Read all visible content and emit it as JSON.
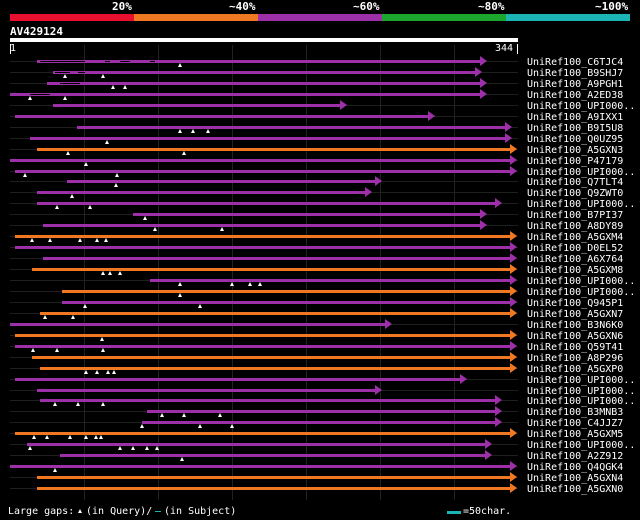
{
  "legend": {
    "ticks": [
      "20%",
      "~40%",
      "~60%",
      "~80%",
      "~100%"
    ],
    "colors": [
      "#e8102e",
      "#f07822",
      "#9d2fa8",
      "#1ca62e",
      "#1bb5b5"
    ]
  },
  "query": {
    "name": "AV429124",
    "start": "1",
    "end": "344"
  },
  "colors": {
    "purple": "#9d2fa8",
    "orange": "#f07822",
    "white": "#ffffff"
  },
  "hits": [
    {
      "label": "UniRef100_C6TJC4",
      "color": "purple",
      "start": 27,
      "end": 470,
      "gaps": [
        [
          30,
          75
        ],
        [
          95,
          100
        ],
        [
          110,
          120
        ],
        [
          140,
          145
        ]
      ],
      "tris": [
        170
      ]
    },
    {
      "label": "UniRef100_B9SHJ7",
      "color": "purple",
      "start": 43,
      "end": 465,
      "gaps": [
        [
          45,
          60
        ],
        [
          68,
          75
        ]
      ],
      "tris": [
        55,
        93
      ]
    },
    {
      "label": "UniRef100_A9PGH1",
      "color": "purple",
      "start": 37,
      "end": 470,
      "gaps": [
        [
          50,
          70
        ]
      ],
      "tris": [
        103,
        115
      ]
    },
    {
      "label": "UniRef100_A2ED38",
      "color": "purple",
      "start": 0,
      "end": 470,
      "gaps": [
        [
          20,
          40
        ]
      ],
      "tris": [
        20,
        55
      ]
    },
    {
      "label": "UniRef100_UPI000..",
      "color": "purple",
      "start": 43,
      "end": 330,
      "gaps": [],
      "tris": []
    },
    {
      "label": "UniRef100_A9IXX1",
      "color": "purple",
      "start": 5,
      "end": 418,
      "gaps": [],
      "tris": []
    },
    {
      "label": "UniRef100_B9I5U8",
      "color": "purple",
      "start": 67,
      "end": 495,
      "gaps": [],
      "tris": [
        170,
        183,
        198
      ]
    },
    {
      "label": "UniRef100_Q0UZ95",
      "color": "purple",
      "start": 20,
      "end": 495,
      "gaps": [],
      "tris": [
        97
      ]
    },
    {
      "label": "UniRef100_A5GXN3",
      "color": "orange",
      "start": 27,
      "end": 500,
      "gaps": [],
      "tris": [
        58,
        174
      ]
    },
    {
      "label": "UniRef100_P47179",
      "color": "purple",
      "start": 0,
      "end": 500,
      "gaps": [],
      "tris": [
        76
      ]
    },
    {
      "label": "UniRef100_UPI000..",
      "color": "purple",
      "start": 5,
      "end": 500,
      "gaps": [],
      "tris": [
        15,
        107
      ]
    },
    {
      "label": "UniRef100_Q7TLT4",
      "color": "purple",
      "start": 57,
      "end": 365,
      "gaps": [],
      "tris": [
        106
      ]
    },
    {
      "label": "UniRef100_Q9ZWT0",
      "color": "purple",
      "start": 27,
      "end": 355,
      "gaps": [],
      "tris": [
        62
      ]
    },
    {
      "label": "UniRef100_UPI000..",
      "color": "purple",
      "start": 27,
      "end": 485,
      "gaps": [],
      "tris": [
        47,
        80
      ]
    },
    {
      "label": "UniRef100_B7PI37",
      "color": "purple",
      "start": 123,
      "end": 470,
      "gaps": [],
      "tris": [
        135
      ]
    },
    {
      "label": "UniRef100_A8DY89",
      "color": "purple",
      "start": 33,
      "end": 470,
      "gaps": [],
      "tris": [
        145,
        212
      ]
    },
    {
      "label": "UniRef100_A5GXM4",
      "color": "orange",
      "start": 5,
      "end": 500,
      "gaps": [],
      "tris": [
        22,
        40,
        70,
        87,
        96
      ]
    },
    {
      "label": "UniRef100_D0EL52",
      "color": "purple",
      "start": 5,
      "end": 500,
      "gaps": [],
      "tris": []
    },
    {
      "label": "UniRef100_A6X764",
      "color": "purple",
      "start": 33,
      "end": 500,
      "gaps": [],
      "tris": []
    },
    {
      "label": "UniRef100_A5GXM8",
      "color": "orange",
      "start": 22,
      "end": 500,
      "gaps": [],
      "tris": [
        93,
        100,
        110
      ]
    },
    {
      "label": "UniRef100_UPI000..",
      "color": "purple",
      "start": 140,
      "end": 500,
      "gaps": [],
      "tris": [
        170,
        222,
        240,
        250
      ]
    },
    {
      "label": "UniRef100_UPI000..",
      "color": "orange",
      "start": 52,
      "end": 500,
      "gaps": [],
      "tris": [
        170
      ]
    },
    {
      "label": "UniRef100_Q945P1",
      "color": "purple",
      "start": 52,
      "end": 500,
      "gaps": [],
      "tris": [
        75,
        190
      ]
    },
    {
      "label": "UniRef100_A5GXN7",
      "color": "orange",
      "start": 30,
      "end": 500,
      "gaps": [],
      "tris": [
        35,
        63
      ]
    },
    {
      "label": "UniRef100_B3N6K0",
      "color": "purple",
      "start": 0,
      "end": 375,
      "gaps": [],
      "tris": []
    },
    {
      "label": "UniRef100_A5GXN6",
      "color": "orange",
      "start": 5,
      "end": 500,
      "gaps": [],
      "tris": [
        92
      ]
    },
    {
      "label": "UniRef100_Q59T41",
      "color": "purple",
      "start": 5,
      "end": 500,
      "gaps": [],
      "tris": [
        23,
        47,
        93
      ]
    },
    {
      "label": "UniRef100_A8P296",
      "color": "orange",
      "start": 22,
      "end": 500,
      "gaps": [],
      "tris": []
    },
    {
      "label": "UniRef100_A5GXP0",
      "color": "orange",
      "start": 30,
      "end": 500,
      "gaps": [],
      "tris": [
        76,
        87,
        98,
        104
      ]
    },
    {
      "label": "UniRef100_UPI000..",
      "color": "purple",
      "start": 5,
      "end": 450,
      "gaps": [],
      "tris": []
    },
    {
      "label": "UniRef100_UPI000..",
      "color": "purple",
      "start": 27,
      "end": 365,
      "gaps": [],
      "tris": []
    },
    {
      "label": "UniRef100_UPI000..",
      "color": "purple",
      "start": 30,
      "end": 485,
      "gaps": [],
      "tris": [
        45,
        68,
        93
      ]
    },
    {
      "label": "UniRef100_B3MNB3",
      "color": "purple",
      "start": 137,
      "end": 485,
      "gaps": [],
      "tris": [
        152,
        174,
        210
      ]
    },
    {
      "label": "UniRef100_C4JJZ7",
      "color": "purple",
      "start": 132,
      "end": 485,
      "gaps": [],
      "tris": [
        132,
        190,
        222
      ]
    },
    {
      "label": "UniRef100_A5GXM5",
      "color": "orange",
      "start": 5,
      "end": 500,
      "gaps": [],
      "tris": [
        24,
        37,
        60,
        76,
        86,
        91
      ]
    },
    {
      "label": "UniRef100_UPI000..",
      "color": "purple",
      "start": 17,
      "end": 475,
      "gaps": [],
      "tris": [
        20,
        110,
        123,
        137,
        147
      ]
    },
    {
      "label": "UniRef100_A2Z912",
      "color": "purple",
      "start": 50,
      "end": 475,
      "gaps": [],
      "tris": [
        172
      ]
    },
    {
      "label": "UniRef100_Q4QGK4",
      "color": "purple",
      "start": 0,
      "end": 500,
      "gaps": [],
      "tris": [
        45
      ]
    },
    {
      "label": "UniRef100_A5GXN4",
      "color": "orange",
      "start": 27,
      "end": 500,
      "gaps": [],
      "tris": []
    },
    {
      "label": "UniRef100_A5GXN0",
      "color": "orange",
      "start": 27,
      "end": 500,
      "gaps": [],
      "tris": []
    }
  ],
  "footer": {
    "gaps_label": "Large gaps:",
    "query_gap_label": "(in Query)/",
    "subject_gap_label": "(in Subject)",
    "scale_label": "=50char."
  }
}
